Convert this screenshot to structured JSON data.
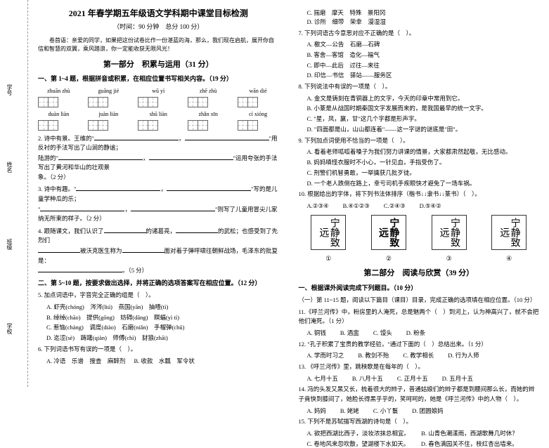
{
  "title": "2021 年春学期五年级语文学科期中课堂目标检测",
  "time_info": "（时间：90 分钟　总分 100 分）",
  "intro": "卷首语：亲爱的同学，如果把这份试卷比作一份湛蓝的海，那么，我们现在启航，展开你自信和智慧的双翼，乘风踏浪，你一定能收获无限风光！",
  "binding": {
    "school": "学校",
    "class": "班级",
    "name": "姓名",
    "number": "学号"
  },
  "part1": {
    "header": "第一部分　积累与运用（31 分）",
    "q1_4_header": "一、第 1~4 题，根据拼音或积累，在相应位置书写相关内容。（19 分）",
    "pinyin_row1": [
      "zhuān zhù",
      "guāng jié",
      "wū yì",
      "zhē zhù",
      "wān dié"
    ],
    "pinyin_row2": [
      "duàn liàn",
      "juàn liàn",
      "shū liàn",
      "zhǎn xīn",
      "cí xióng"
    ],
    "q2": "2. 诗中有景。王维的\"",
    "q2_end": "\"用反衬的手法写出了山涧的静谧；",
    "q2b": "陆游的\"",
    "q2b_end": "\"运用夸张的手法写出了黄河和华山的壮观景",
    "q2c": "象。（2 分）",
    "q3": "3. 诗中有趣。\"",
    "q3_end": "\"写的是儿童学种瓜的乐；",
    "q3b": "\"",
    "q3b_end": "\"则写了儿童用冒尖儿家纳无所束的样子。（2 分）",
    "q4": "4. 跟随课文，我们认识了",
    "q4_mid": "的诸葛亮，",
    "q4_end": "的武松；也感受到了先烈们",
    "q4b": "被沃克医生称为",
    "q4b_mid": "面对着子弹呼啸往朝鲜战场，毛泽东的批复是：",
    "q4c": "。（5 分）",
    "q5_10_header": "二、第 5~10 题，按要求做出选择，并将正确的选项答案写在相应位置。（12 分）",
    "q5": "5. 加点词语中，字音完全正确的组是（　）。",
    "q5_opts": {
      "a": "A. 虾壳(chóng)　涔涔(liú)　燕国(yān)　抽噎(tì)",
      "b": "B. 绰绰(chāo)　提供(gōng)　妨碍(dāng)　瞑蝠(yì tì)",
      "c": "C. 惹恼(chàng)　调度(diào)　石磨(niǎn)　手榴弹(chū)",
      "d": "D. 迄涩(sè)　踌躇(qiàn)　师傅(chì)　豺狼(zhāi)"
    },
    "q6": "6. 下列词语书写有误的一项是（　）。",
    "q6_opts": [
      "A. 冷语　乐谱　搜查　麻醉剂",
      "B. 收款　水瓢　军令状"
    ]
  },
  "col2": {
    "qC": "C. 揣磨　摩天　特殊　景阳冈",
    "qD": "D. 诊所　细带　荣幸　漫湿湿",
    "q7": "7. 下列词语古今意思对应不正确的是（　）。",
    "q7_opts": {
      "a": "A. 檄文—公告　石磨—石碑",
      "b": "B. 客舍—客馆　造化—福气",
      "c": "C. 即中—此后　过往—来往",
      "d": "D. 印信—书信　驿站——服务区"
    },
    "q8": "8. 下列说法中有误的一项是（　）。",
    "q8_opts": {
      "a": "A. 金文是铸刻在青铜器上的文字，今天的印章中常用到它。",
      "b": "B. 小篆是从战国时期秦国文字发展而来的，是我国最早的统一文字。",
      "c": "C. \"星，凤，嬴，甘\"这几个字都是形声字。",
      "d": "D. \"四面都是山，山山都连着\"——这一字谜的谜底是\"田\"。"
    },
    "q9": "9. 下列加点词使用不恰当的一项是（　）。",
    "q9_opts": {
      "a": "A. 看着老师呱呱着嗓子为我们努力讲课的情景，大家都肃然起敬，无比感动。",
      "b": "B. 妈妈嗔怪衣服时不小心，一针见血，手指受伤了。",
      "c": "C. 刑警们机智勇敢，一举擒获几批歹徒。",
      "d": "D. 一个老人跌倒在路上，幸亏司机手疾眼快才避免了一场车祸。"
    },
    "q10": "10. 根据给出的字体，将下列书法体排序（楷书↓↓隶书↓↓篆书）（　）。",
    "q10_opts": [
      "A.②③④",
      "B.④①②③",
      "C.②④③",
      "D.⑤④②"
    ],
    "calli_text": "宁静致远",
    "nums": [
      "①",
      "②",
      "③",
      "④"
    ]
  },
  "part2": {
    "header": "第二部分　阅读与欣赏（39 分）",
    "sub1": "一、根据课外阅读完成下列题目。（10 分）",
    "q11_15": "（一）第 11~15 题，阅读以下篇目（课目）目录，完成正确的选项填在相应位置。（10 分）",
    "q11": "11.《呼兰河传》中，粉房里的人淹死，总是魅两个（　）到河上，认为神高兴了，就不会把他们淹死。（1 分）",
    "q11_opts": [
      "A. 铜钱",
      "B. 酒盅",
      "C. 馒头",
      "D. 粉条"
    ],
    "q12": "12. \"孔子积累了宝贵的教学经验，\"通过下面的（　）总结出来。（1 分）",
    "q12_opts": [
      "A. 学而时习之",
      "B. 教剑不殆",
      "C. 教学相长",
      "D. 行为人师"
    ],
    "q13": "13. 《呼兰河传》里，跳秧歌是在每年的（　）。",
    "q13_opts": [
      "A. 七月十五",
      "B. 八月十五",
      "C. 正月十五",
      "D. 五月十五"
    ],
    "q14": "14. 冯的头发又黑又长，梳着很大的辫子，普通姑娘们的辫子都是到腰间那么长，而她的辫子竟快到膝间了，她脸长得黑乎乎的，笑呵呵的，她是《呼兰河传》中的人物（　）。",
    "q14_opts": [
      "A. 妈妈",
      "B. 姥姥",
      "C. 小丫鬟",
      "D. 团圆娘妈"
    ],
    "q15": "15. 下列不是苏轼描写西湖的诗句是（　）。",
    "q15_opts": {
      "a": "A. 欲把西湖比西子，淡妆浓抹总相宜。",
      "b": "B. 山青色潮漾雨，西湖歌舞几时休？",
      "c": "C. 卷地风来忽吹散，望湖楼下水如天。",
      "d": "D. 春色满园关不住，枝红杏出墙来。"
    }
  }
}
